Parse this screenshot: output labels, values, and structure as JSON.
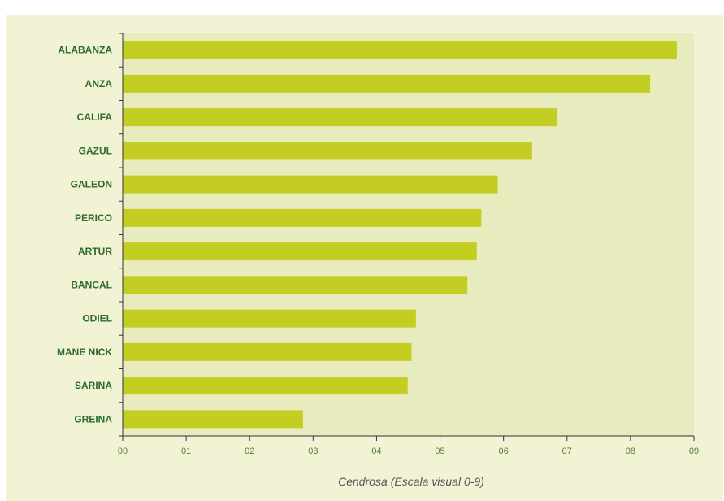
{
  "chart_data": {
    "type": "bar",
    "orientation": "horizontal",
    "categories": [
      "ALABANZA",
      "ANZA",
      "CALIFA",
      "GAZUL",
      "GALEON",
      "PERICO",
      "ARTUR",
      "BANCAL",
      "ODIEL",
      "MANE NICK",
      "SARINA",
      "GREINA"
    ],
    "values": [
      8.73,
      8.31,
      6.85,
      6.45,
      5.91,
      5.65,
      5.58,
      5.43,
      4.62,
      4.55,
      4.49,
      2.84
    ],
    "xlabel": "Cendrosa (Escala visual 0-9)",
    "ylabel": "",
    "xlim": [
      0,
      9
    ],
    "x_ticks": [
      "00",
      "01",
      "02",
      "03",
      "04",
      "05",
      "06",
      "07",
      "08",
      "09"
    ],
    "grid": false,
    "colors": {
      "bar": "#c4cd22",
      "plot_bg": "#e7ebbd",
      "panel_bg": "#f1f3d4",
      "category_text": "#2f6b2f",
      "tick_text": "#5a7a3a",
      "axis": "#333333"
    }
  }
}
